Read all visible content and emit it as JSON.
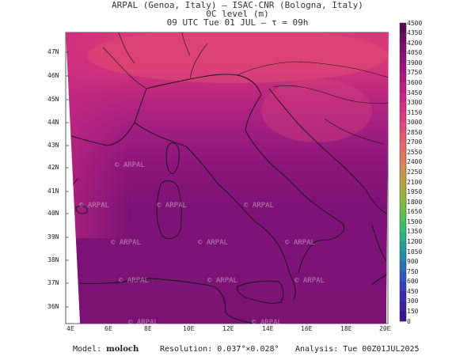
{
  "header": {
    "line1": "ARPAL (Genoa, Italy)  –  ISAC-CNR (Bologna, Italy)",
    "line2": "0C level (m)",
    "line3": "09 UTC Tue 01 JUL  –  τ = 09h"
  },
  "footer": {
    "model_label": "Model:",
    "model_value": "moloch",
    "resolution_label": "Resolution:",
    "resolution_value": "0.037°×0.028°",
    "analysis_label": "Analysis:",
    "analysis_value": "Tue 00Z01JUL2025"
  },
  "watermark": "© ARPAL",
  "map": {
    "lat_labels": [
      "47N",
      "46N",
      "45N",
      "44N",
      "43N",
      "42N",
      "41N",
      "40N",
      "39N",
      "38N",
      "37N",
      "36N"
    ],
    "lon_labels": [
      "4E",
      "6E",
      "8E",
      "10E",
      "12E",
      "14E",
      "16E",
      "18E",
      "20E"
    ]
  },
  "colorbar": {
    "labels": [
      "4500",
      "4350",
      "4200",
      "4050",
      "3900",
      "3750",
      "3600",
      "3450",
      "3300",
      "3150",
      "3000",
      "2850",
      "2700",
      "2550",
      "2400",
      "2250",
      "2100",
      "1950",
      "1800",
      "1650",
      "1500",
      "1350",
      "1200",
      "1050",
      "900",
      "750",
      "600",
      "450",
      "300",
      "150",
      "0"
    ],
    "colors": [
      "#5a0a55",
      "#6a0c62",
      "#7a1070",
      "#8a127a",
      "#9a1580",
      "#aa1a82",
      "#ba1f84",
      "#c82684",
      "#d42f82",
      "#dd3a7e",
      "#e24a78",
      "#e45a72",
      "#e26a6a",
      "#dc7a60",
      "#d08a55",
      "#c09848",
      "#a8a840",
      "#8fb43c",
      "#72bc44",
      "#56bf55",
      "#3cbb6c",
      "#2cb082",
      "#249c97",
      "#2488a8",
      "#2870b4",
      "#2e58bc",
      "#3440bc",
      "#3a2cb0",
      "#3c1ea0",
      "#3a148c"
    ]
  }
}
